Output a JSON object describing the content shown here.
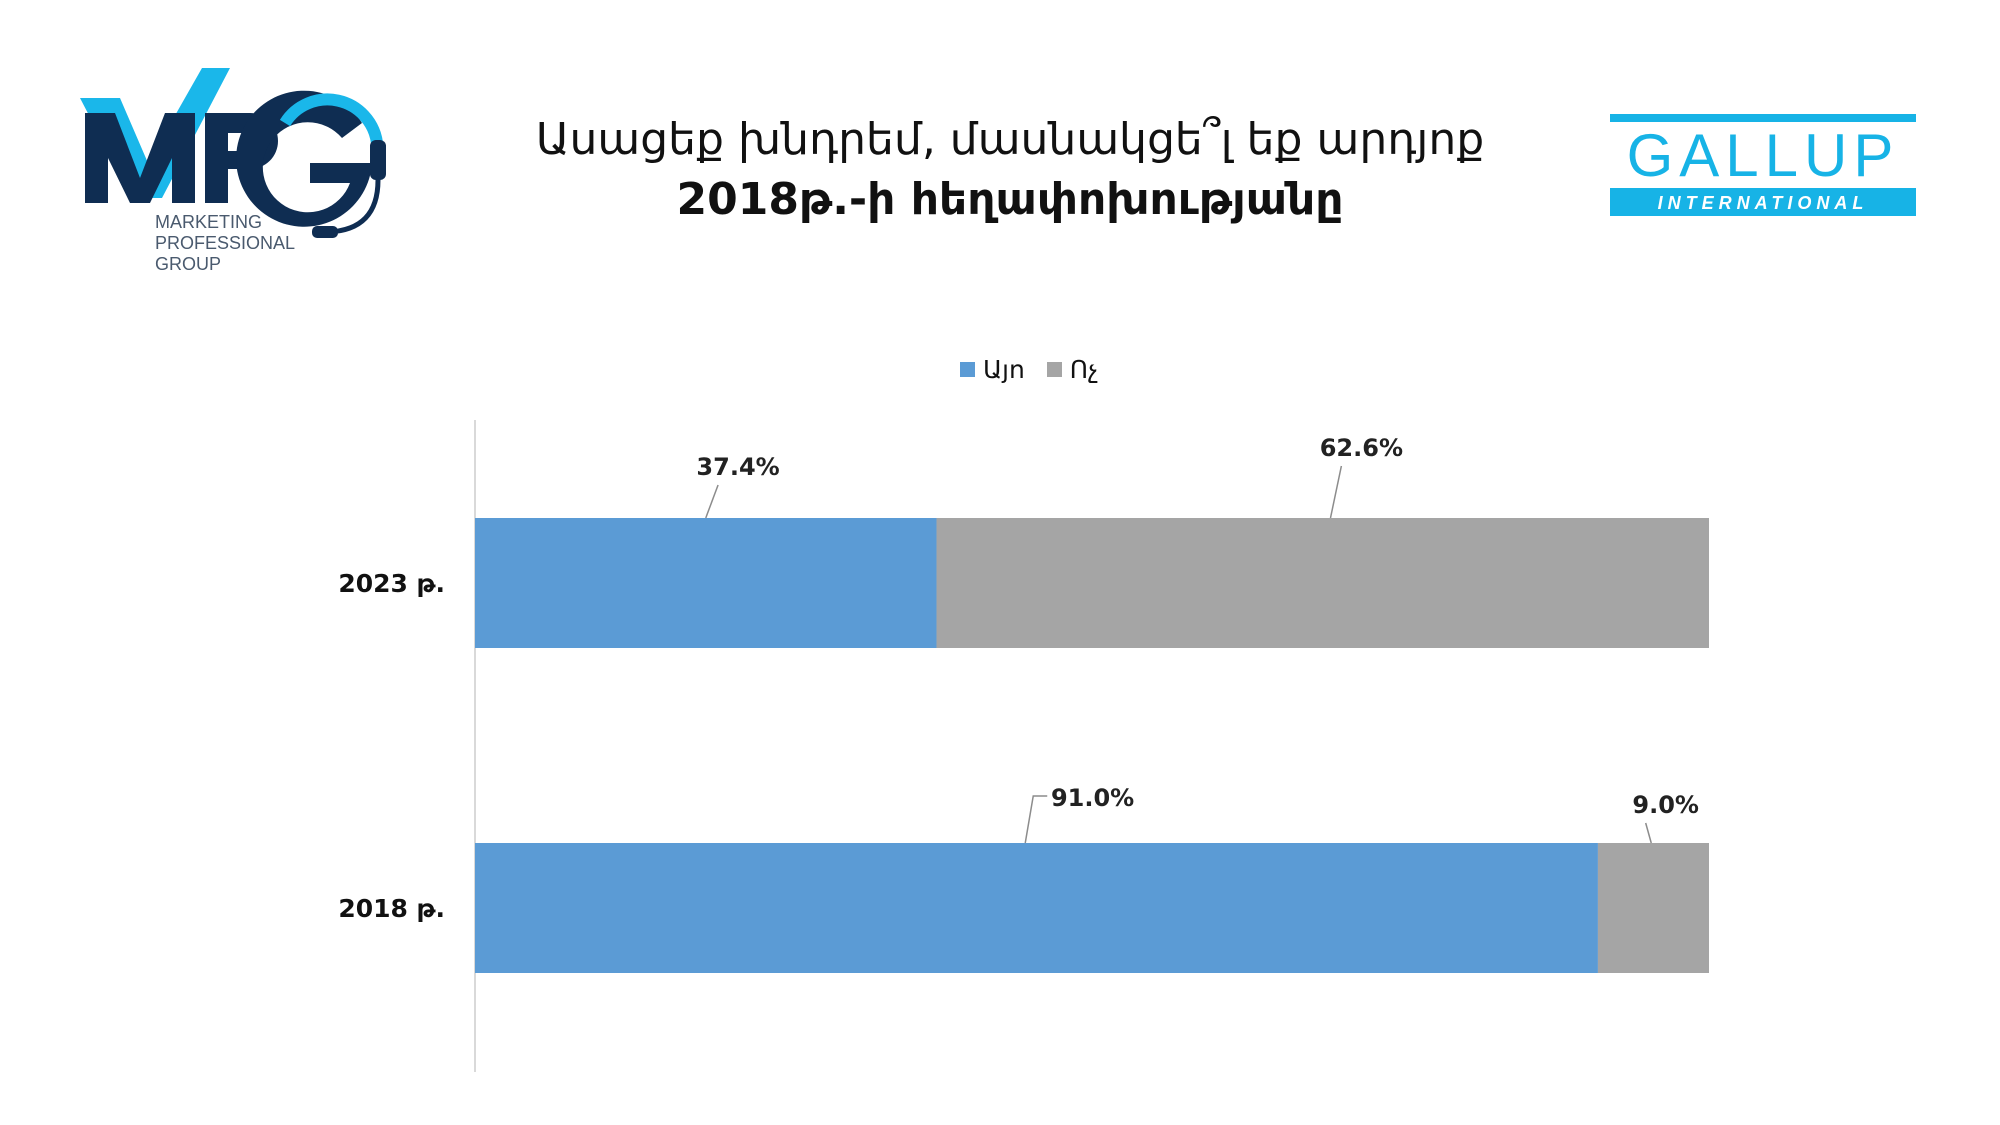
{
  "title": {
    "line1": "Ասացեք խնդրեմ, մասնակցե՞լ եք արդյոք",
    "line2": "2018թ.-ի հեղափոխությանը"
  },
  "logos": {
    "mpg": {
      "mark": "MPG",
      "text_lines": [
        "MARKETING",
        "PROFESSIONAL",
        "GROUP"
      ]
    },
    "gallup": {
      "mark": "GALLUP",
      "sub": "INTERNATIONAL"
    }
  },
  "colors": {
    "yes": "#5b9bd5",
    "no": "#a5a5a5",
    "mpg_navy": "#0f2d52",
    "mpg_cyan": "#1ab7ea",
    "gallup": "#17b3e6"
  },
  "chart_data": {
    "type": "bar",
    "orientation": "horizontal",
    "stacked": true,
    "categories": [
      "2023 թ.",
      "2018 թ."
    ],
    "series": [
      {
        "name": "Այո",
        "values": [
          37.4,
          91.0
        ],
        "labels": [
          "37.4%",
          "91.0%"
        ]
      },
      {
        "name": "Ոչ",
        "values": [
          62.6,
          9.0
        ],
        "labels": [
          "62.6%",
          "9.0%"
        ]
      }
    ],
    "xlim": [
      0,
      100
    ],
    "legend": "top-center",
    "grid": false
  }
}
